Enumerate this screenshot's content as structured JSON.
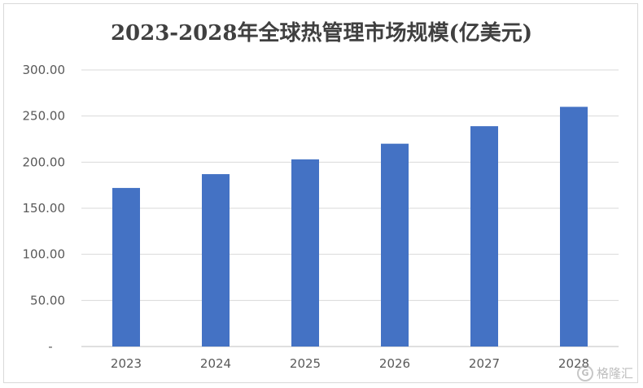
{
  "chart_data": {
    "type": "bar",
    "title": "2023-2028年全球热管理市场规模(亿美元)",
    "categories": [
      "2023",
      "2024",
      "2025",
      "2026",
      "2027",
      "2028"
    ],
    "values": [
      172,
      187,
      203,
      220,
      239,
      260
    ],
    "y_ticks": [
      {
        "value": 0,
        "label": "-"
      },
      {
        "value": 50,
        "label": "50.00"
      },
      {
        "value": 100,
        "label": "100.00"
      },
      {
        "value": 150,
        "label": "150.00"
      },
      {
        "value": 200,
        "label": "200.00"
      },
      {
        "value": 250,
        "label": "250.00"
      },
      {
        "value": 300,
        "label": "300.00"
      }
    ],
    "ylim": [
      0,
      300
    ],
    "grid": true,
    "bar_color": "#4472c4"
  },
  "watermark": {
    "text": "格隆汇",
    "logo": "G"
  }
}
